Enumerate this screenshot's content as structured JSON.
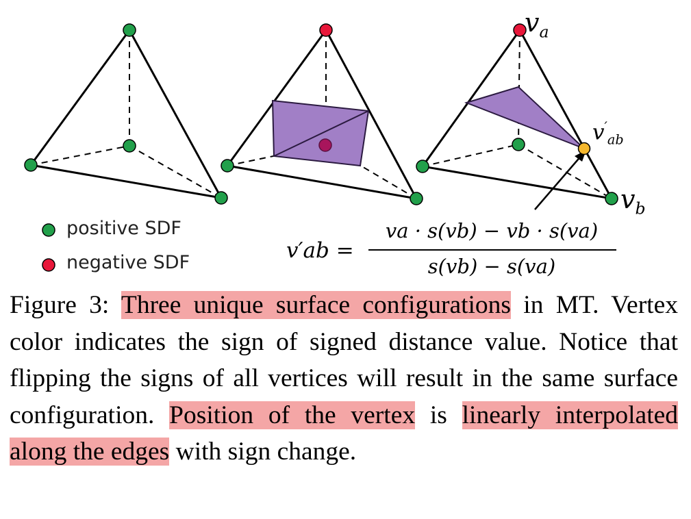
{
  "legend": {
    "positive": {
      "label": "positive SDF",
      "color": "#22a04b"
    },
    "negative": {
      "label": "negative SDF",
      "color": "#e8173a"
    }
  },
  "labels": {
    "va": "v",
    "va_sub": "a",
    "vb": "v",
    "vb_sub": "b",
    "vab": "v",
    "vab_prime": "′",
    "vab_sub": "ab"
  },
  "formula": {
    "lhs": "v′ab =",
    "numerator": "va · s(vb) − vb · s(va)",
    "denominator": "s(vb) − s(va)"
  },
  "colors": {
    "surface_fill": "#a17fc6",
    "surface_stroke": "#2b1a40",
    "interp_vertex": "#f5b82e",
    "highlight": "#f4a6a6"
  },
  "caption": {
    "figure_label": "Figure 3:",
    "hl1": "Three unique surface configurations",
    "t1": " in MT. Vertex color indicates the sign of signed distance value. Notice that flipping the signs of all vertices will result in the same surface configuration. ",
    "hl2": "Position of the vertex",
    "t2": " is ",
    "hl3": "linearly interpolated along the edges",
    "t3": " with sign change."
  }
}
